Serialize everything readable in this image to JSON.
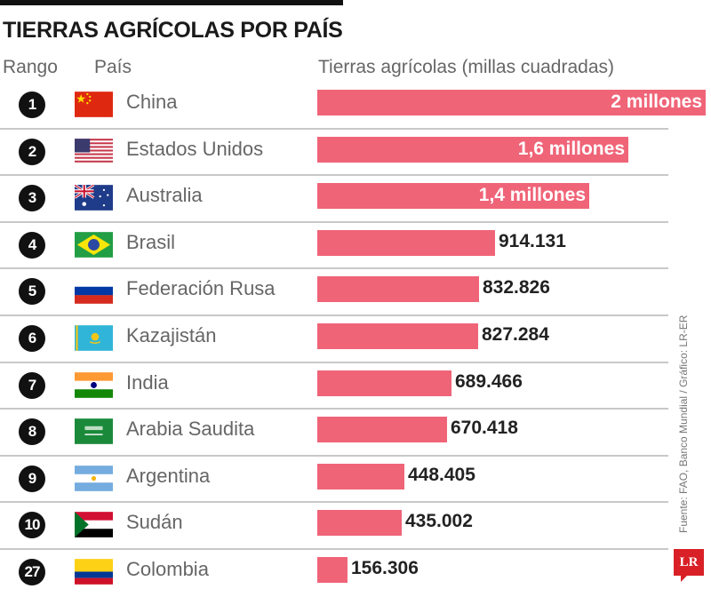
{
  "title": "TIERRAS AGRÍCOLAS POR PAÍS",
  "headers": {
    "rank": "Rango",
    "country": "País",
    "value": "Tierras agrícolas (millas cuadradas)"
  },
  "source": "Fuente: FAO, Banco Mundial / Gráfico: LR-ER",
  "logo": "LR",
  "bar_color": "#f06478",
  "rows": [
    {
      "rank": "1",
      "country": "China",
      "label": "2 millones",
      "flag": "china-flag"
    },
    {
      "rank": "2",
      "country": "Estados Unidos",
      "label": "1,6 millones",
      "flag": "usa-flag"
    },
    {
      "rank": "3",
      "country": "Australia",
      "label": "1,4 millones",
      "flag": "australia-flag"
    },
    {
      "rank": "4",
      "country": "Brasil",
      "label": "914.131",
      "flag": "brazil-flag"
    },
    {
      "rank": "5",
      "country": "Federación Rusa",
      "label": "832.826",
      "flag": "russia-flag"
    },
    {
      "rank": "6",
      "country": "Kazajistán",
      "label": "827.284",
      "flag": "kazakhstan-flag"
    },
    {
      "rank": "7",
      "country": "India",
      "label": "689.466",
      "flag": "india-flag"
    },
    {
      "rank": "8",
      "country": "Arabia Saudita",
      "label": "670.418",
      "flag": "saudi-arabia-flag"
    },
    {
      "rank": "9",
      "country": "Argentina",
      "label": "448.405",
      "flag": "argentina-flag"
    },
    {
      "rank": "10",
      "country": "Sudán",
      "label": "435.002",
      "flag": "sudan-flag"
    },
    {
      "rank": "27",
      "country": "Colombia",
      "label": "156.306",
      "flag": "colombia-flag"
    }
  ],
  "chart_data": {
    "type": "bar",
    "orientation": "horizontal",
    "title": "TIERRAS AGRÍCOLAS POR PAÍS",
    "xlabel": "Tierras agrícolas (millas cuadradas)",
    "ylabel": "País",
    "categories": [
      "China",
      "Estados Unidos",
      "Australia",
      "Brasil",
      "Federación Rusa",
      "Kazajistán",
      "India",
      "Arabia Saudita",
      "Argentina",
      "Sudán",
      "Colombia"
    ],
    "ranks": [
      1,
      2,
      3,
      4,
      5,
      6,
      7,
      8,
      9,
      10,
      27
    ],
    "values": [
      2000000,
      1600000,
      1400000,
      914131,
      832826,
      827284,
      689466,
      670418,
      448405,
      435002,
      156306
    ],
    "value_labels": [
      "2 millones",
      "1,6 millones",
      "1,4 millones",
      "914.131",
      "832.826",
      "827.284",
      "689.466",
      "670.418",
      "448.405",
      "435.002",
      "156.306"
    ],
    "grid": false,
    "legend": null
  }
}
